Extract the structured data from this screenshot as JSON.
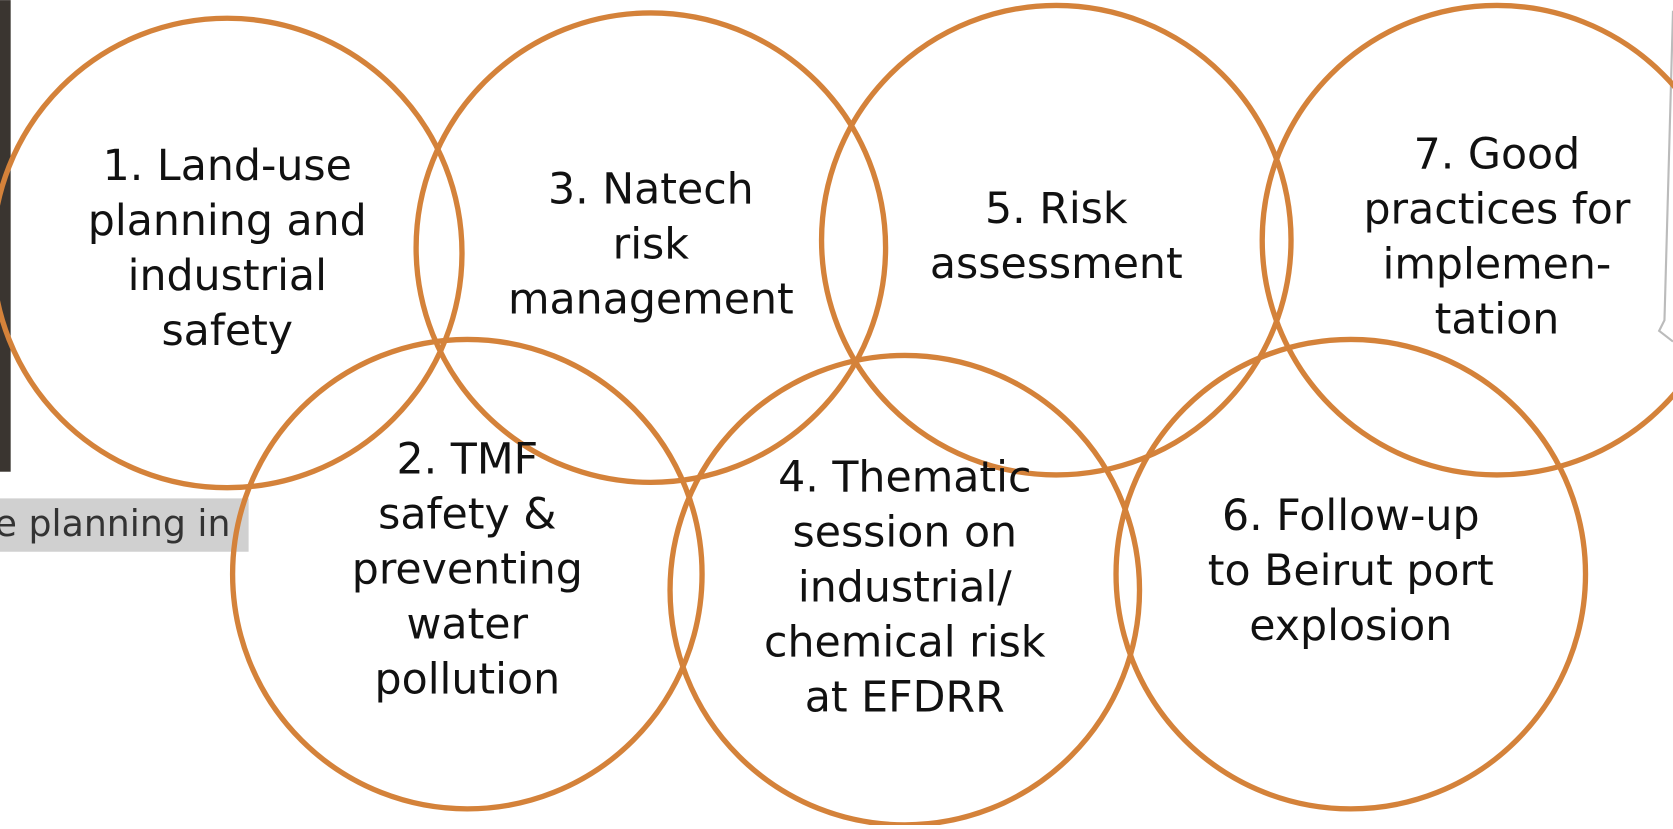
{
  "caption": "e planning in",
  "nodes": [
    {
      "lines": [
        "1. Land-use",
        "planning and",
        "industrial",
        "safety"
      ]
    },
    {
      "lines": [
        "2. TMF",
        "safety &",
        "preventing",
        "water",
        "pollution"
      ]
    },
    {
      "lines": [
        "3. Natech",
        "risk",
        "management"
      ]
    },
    {
      "lines": [
        "4. Thematic",
        "session on",
        "industrial/",
        "chemical risk",
        "at EFDRR"
      ]
    },
    {
      "lines": [
        "5. Risk",
        "assessment"
      ]
    },
    {
      "lines": [
        "6. Follow-up",
        "to Beirut port",
        "explosion"
      ]
    },
    {
      "lines": [
        "7. Good",
        "practices for",
        "implemen-",
        "tation"
      ]
    }
  ]
}
